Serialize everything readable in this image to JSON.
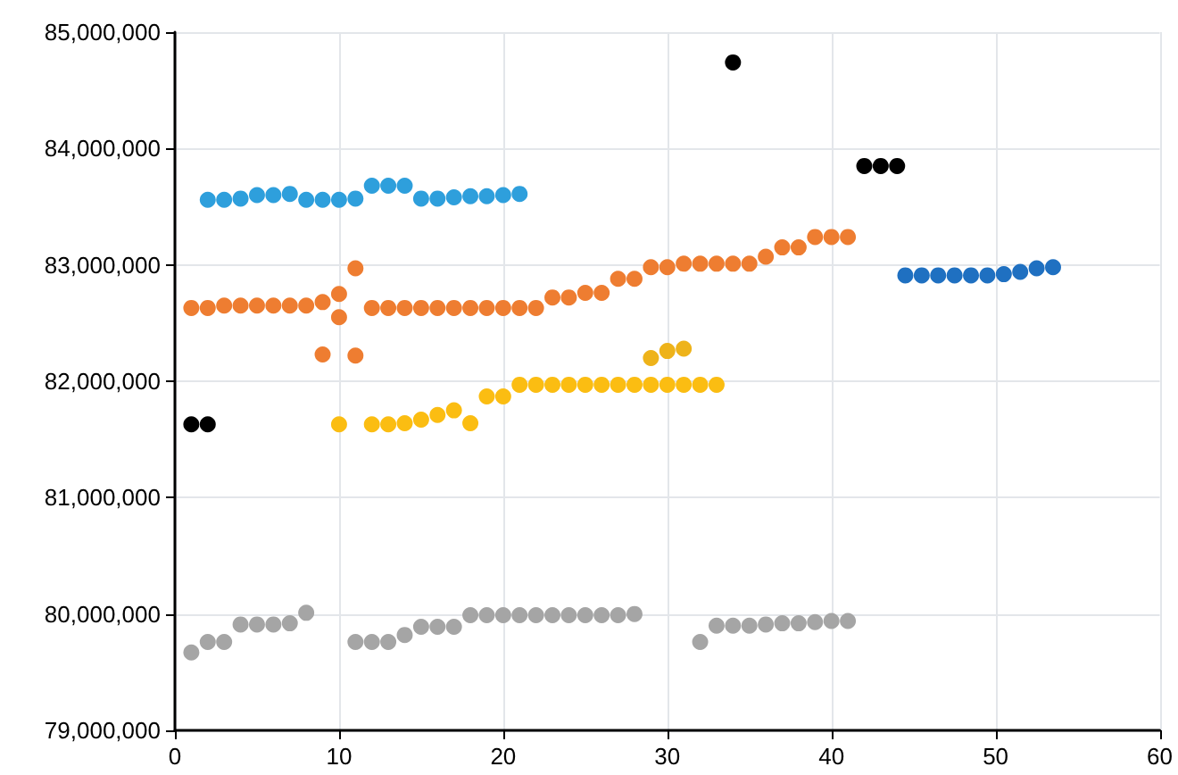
{
  "chart_data": {
    "type": "scatter",
    "marker": "circle",
    "grid": true,
    "xlim": [
      0,
      60
    ],
    "xticks": [
      0,
      10,
      20,
      30,
      40,
      50,
      60
    ],
    "ylim": [
      79000000,
      85000000
    ],
    "yticks": [
      {
        "value": 79000000,
        "label": "79,000,000"
      },
      {
        "value": 80000000,
        "label": "80,000,000"
      },
      {
        "value": 81000000,
        "label": "81,000,000"
      },
      {
        "value": 82000000,
        "label": "82,000,000"
      },
      {
        "value": 83000000,
        "label": "83,000,000"
      },
      {
        "value": 84000000,
        "label": "84,000,000"
      },
      {
        "value": 85000000,
        "label": "85,000,000"
      }
    ],
    "series": [
      {
        "color": "#2e9fdc",
        "x": [
          2,
          3,
          4,
          5,
          6,
          7,
          8,
          9,
          10,
          11,
          12,
          13,
          14,
          15,
          16,
          17,
          18,
          19,
          20,
          21
        ],
        "values": [
          83560000,
          83560000,
          83570000,
          83600000,
          83600000,
          83610000,
          83560000,
          83560000,
          83560000,
          83570000,
          83680000,
          83680000,
          83680000,
          83570000,
          83570000,
          83580000,
          83590000,
          83590000,
          83600000,
          83610000
        ]
      },
      {
        "color": "#ee7d31",
        "x": [
          1,
          2,
          3,
          4,
          5,
          6,
          7,
          8,
          9,
          10,
          10,
          11,
          9,
          11,
          12,
          13,
          14,
          15,
          16,
          17,
          18,
          19,
          20,
          21,
          22,
          23,
          24,
          25,
          26,
          27,
          28,
          29,
          30,
          31,
          32,
          33,
          34,
          35,
          36,
          37,
          38,
          39,
          40,
          41
        ],
        "values": [
          82630000,
          82630000,
          82650000,
          82650000,
          82650000,
          82650000,
          82650000,
          82650000,
          82680000,
          82750000,
          82550000,
          82970000,
          82230000,
          82220000,
          82630000,
          82630000,
          82630000,
          82630000,
          82630000,
          82630000,
          82630000,
          82630000,
          82630000,
          82630000,
          82630000,
          82720000,
          82720000,
          82760000,
          82760000,
          82880000,
          82880000,
          82980000,
          82980000,
          83010000,
          83010000,
          83010000,
          83010000,
          83010000,
          83070000,
          83150000,
          83150000,
          83240000,
          83240000,
          83240000
        ]
      },
      {
        "color": "#fbbd12",
        "x": [
          10,
          12,
          13,
          14,
          15,
          16,
          17,
          18,
          19,
          20,
          21,
          22,
          23,
          24,
          25,
          26,
          27,
          28,
          29,
          30,
          31,
          32,
          33
        ],
        "values": [
          81630000,
          81630000,
          81630000,
          81640000,
          81670000,
          81710000,
          81750000,
          81640000,
          81870000,
          81870000,
          81970000,
          81970000,
          81970000,
          81970000,
          81970000,
          81970000,
          81970000,
          81970000,
          81970000,
          81970000,
          81970000,
          81970000,
          81970000
        ]
      },
      {
        "color": "#eeb31a",
        "x": [
          29,
          30,
          31
        ],
        "values": [
          82200000,
          82260000,
          82280000
        ]
      },
      {
        "color": "#000000",
        "x": [
          1,
          2,
          34,
          42,
          43,
          44
        ],
        "values": [
          81630000,
          81630000,
          84740000,
          83850000,
          83850000,
          83850000
        ]
      },
      {
        "color": "#1f70c1",
        "x": [
          44.5,
          45.5,
          46.5,
          47.5,
          48.5,
          49.5,
          50.5,
          51.5,
          52.5,
          53.5
        ],
        "values": [
          82910000,
          82910000,
          82910000,
          82910000,
          82910000,
          82910000,
          82920000,
          82940000,
          82970000,
          82980000
        ]
      },
      {
        "color": "#a5a5a5",
        "x": [
          1,
          2,
          3,
          4,
          5,
          6,
          7,
          8,
          11,
          12,
          13,
          14,
          15,
          16,
          17,
          18,
          19,
          20,
          21,
          22,
          23,
          24,
          25,
          26,
          27,
          28,
          32,
          33,
          34,
          35,
          36,
          37,
          38,
          39,
          40,
          41
        ],
        "values": [
          79670000,
          79760000,
          79760000,
          79910000,
          79910000,
          79910000,
          79920000,
          80010000,
          79760000,
          79760000,
          79760000,
          79820000,
          79890000,
          79890000,
          79890000,
          79990000,
          79990000,
          79990000,
          79990000,
          79990000,
          79990000,
          79990000,
          79990000,
          79990000,
          79990000,
          80000000,
          79760000,
          79900000,
          79900000,
          79900000,
          79910000,
          79920000,
          79920000,
          79930000,
          79940000,
          79940000
        ]
      }
    ]
  }
}
